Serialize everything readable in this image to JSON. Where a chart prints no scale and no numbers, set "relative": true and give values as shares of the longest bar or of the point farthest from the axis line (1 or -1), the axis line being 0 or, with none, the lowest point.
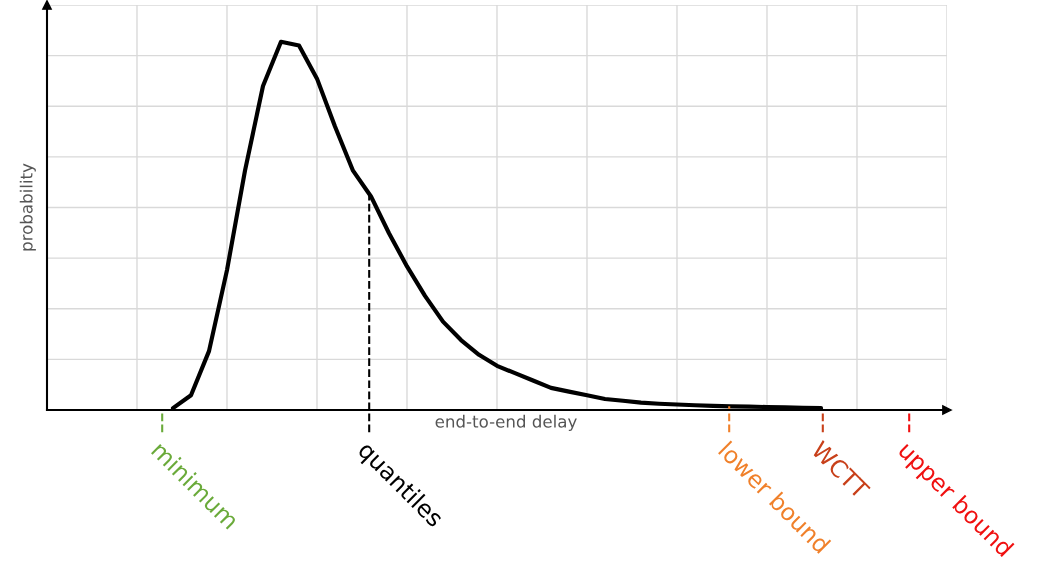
{
  "chart_data": {
    "type": "line",
    "relative": true,
    "xlabel": "end-to-end delay",
    "ylabel": "probability",
    "categories": [
      null,
      null,
      null,
      null,
      null,
      null,
      null,
      null,
      null,
      null,
      null,
      null,
      null,
      null,
      null,
      null,
      null,
      null,
      null,
      null,
      null,
      null,
      null,
      null,
      null,
      null,
      null,
      null,
      null,
      null,
      null,
      null,
      null,
      null,
      null,
      null,
      null,
      null,
      null,
      null,
      null,
      null,
      null,
      null,
      null,
      null,
      null,
      null,
      null,
      null,
      null
    ],
    "series": [
      {
        "color": "#000000",
        "values": [
          null,
          null,
          null,
          null,
          null,
          null,
          null,
          0.005,
          0.04,
          0.16,
          0.38,
          0.65,
          0.88,
          1.0,
          0.99,
          0.9,
          0.77,
          0.65,
          0.58,
          0.48,
          0.39,
          0.31,
          0.24,
          0.19,
          0.15,
          0.12,
          0.1,
          0.08,
          0.06,
          0.05,
          0.04,
          0.03,
          0.025,
          0.02,
          0.017,
          0.015,
          0.013,
          0.011,
          0.01,
          0.009,
          0.008,
          0.007,
          0.006,
          0.005,
          null,
          null,
          null,
          null,
          null,
          null,
          null
        ]
      }
    ],
    "annotations": [
      "minimum",
      "quantiles",
      "lower bound",
      "WCTT",
      "upper bound"
    ],
    "grid": true,
    "legend": false,
    "marker": "none",
    "line_style": "solid"
  }
}
